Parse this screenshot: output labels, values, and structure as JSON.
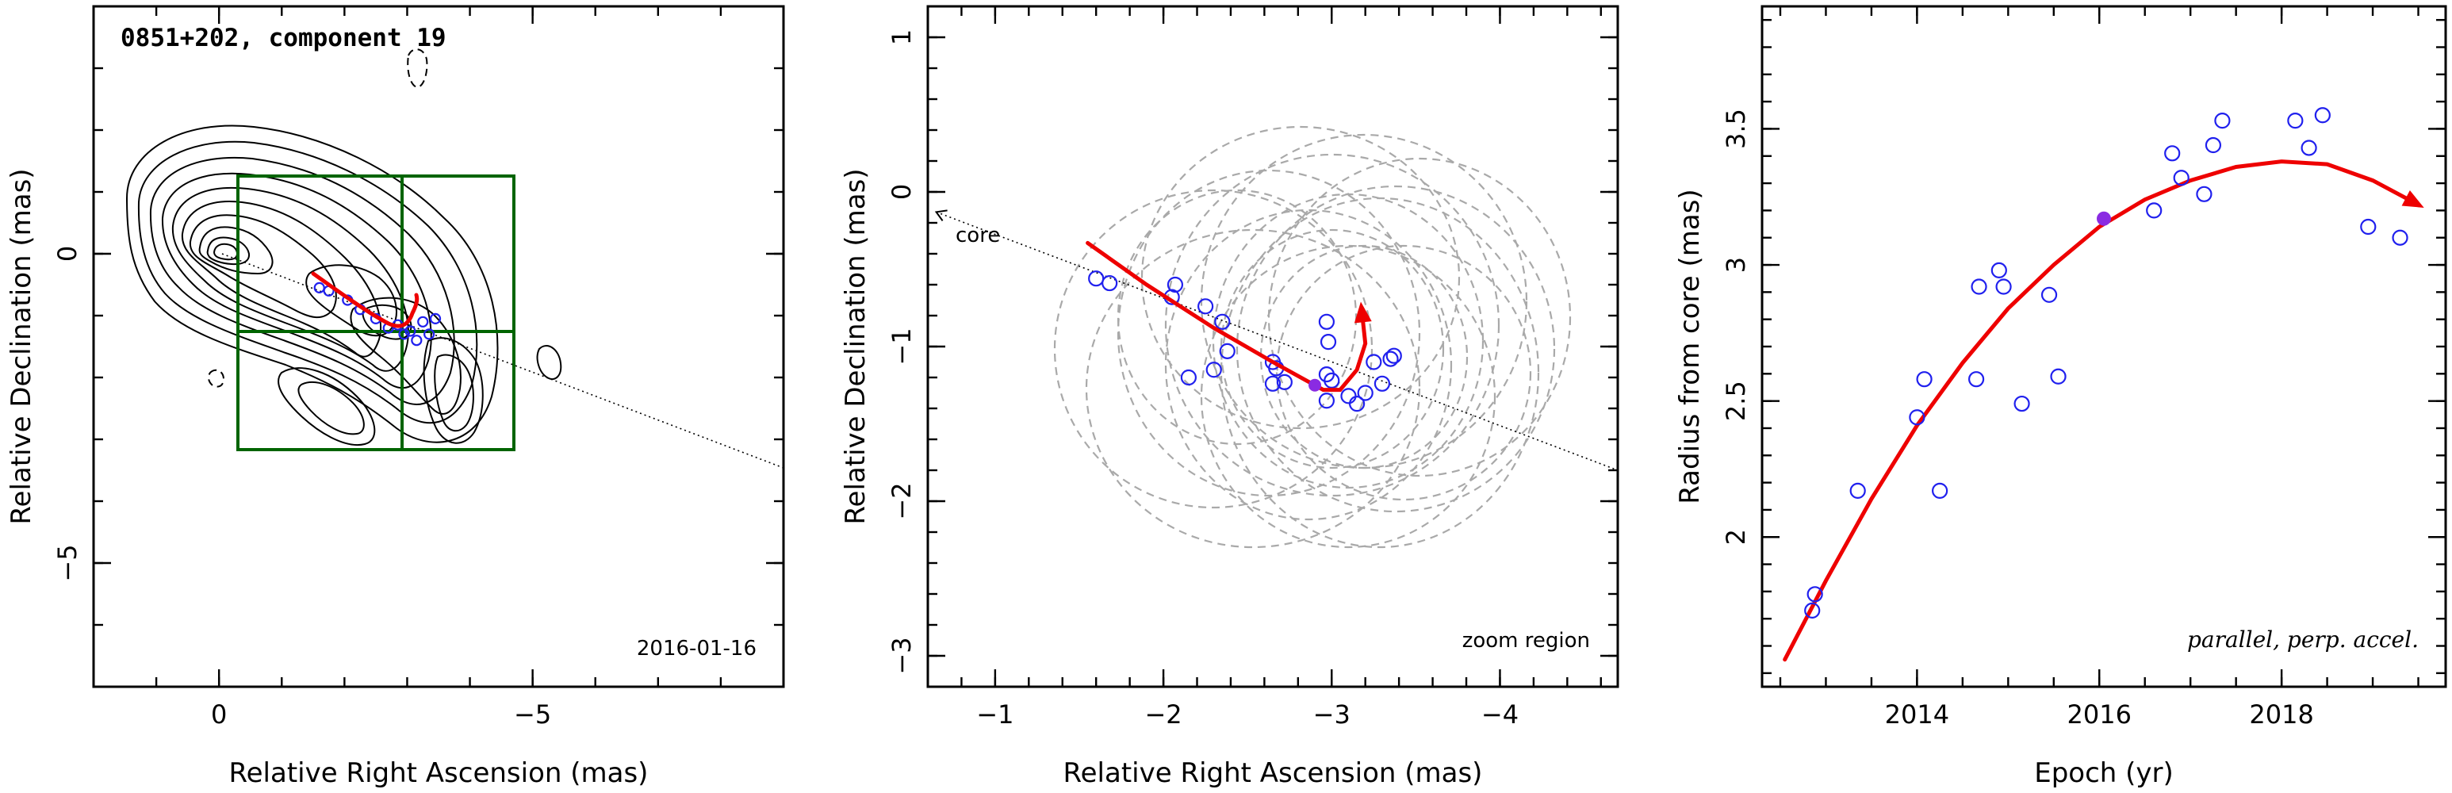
{
  "figure": {
    "title": "0851+202, component 19",
    "panel_a_date": "2016-01-16",
    "panel_b_label": "zoom region",
    "panel_b_core_label": "core",
    "panel_c_label": "parallel, perp. accel."
  },
  "colors": {
    "trajectory": "#ee0000",
    "points": "#2020ee",
    "current_point": "#8a2be2",
    "zoom_box": "#006400",
    "ellipses": "#a9a9a9"
  },
  "chart_data": [
    {
      "type": "scatter",
      "xlabel": "Relative Right Ascension (mas)",
      "ylabel": "Relative Declination (mas)",
      "xlim": [
        2,
        -9
      ],
      "ylim": [
        -7,
        4
      ],
      "x_axis_reversed": true,
      "xticks": [
        0,
        -5
      ],
      "yticks": [
        0,
        -5
      ],
      "annotations": [
        "0851+202, component 19",
        "2016-01-16"
      ],
      "series": [
        {
          "x": [
            -1.6,
            -1.75,
            -2.05,
            -2.25,
            -2.5,
            -2.7,
            -2.85,
            -2.95,
            -3.05,
            -3.15,
            -3.25,
            -3.35,
            -3.45
          ],
          "y": [
            -0.55,
            -0.6,
            -0.75,
            -0.9,
            -1.05,
            -1.2,
            -1.15,
            -1.3,
            -1.25,
            -1.4,
            -1.1,
            -1.3,
            -1.05
          ]
        }
      ]
    },
    {
      "type": "scatter",
      "xlabel": "Relative Right Ascension (mas)",
      "ylabel": "Relative Declination (mas)",
      "xlim": [
        -0.6,
        -4.7
      ],
      "ylim": [
        -3.2,
        1.2
      ],
      "x_axis_reversed": true,
      "xticks": [
        -1,
        -2,
        -3,
        -4
      ],
      "yticks": [
        1,
        0,
        -1,
        -2,
        -3
      ],
      "annotations": [
        "core",
        "zoom region"
      ],
      "series": [
        {
          "x": [
            -1.6,
            -1.68,
            -2.05,
            -2.07,
            -2.25,
            -2.35,
            -2.3,
            -2.38,
            -2.15,
            -2.65,
            -2.67,
            -2.72,
            -2.65,
            -2.97,
            -2.98,
            -2.97,
            -2.97,
            -3.0,
            -3.1,
            -3.15,
            -3.2,
            -3.25,
            -3.3,
            -3.35,
            -3.37
          ],
          "y": [
            -0.56,
            -0.59,
            -0.68,
            -0.6,
            -0.74,
            -0.84,
            -1.15,
            -1.03,
            -1.2,
            -1.1,
            -1.14,
            -1.23,
            -1.24,
            -0.84,
            -0.97,
            -1.18,
            -1.35,
            -1.22,
            -1.32,
            -1.37,
            -1.3,
            -1.1,
            -1.24,
            -1.08,
            -1.06
          ]
        }
      ],
      "highlight_point": {
        "x": -2.9,
        "y": -1.25
      },
      "trajectory": {
        "x": [
          -1.55,
          -1.9,
          -2.3,
          -2.65,
          -2.85,
          -2.95,
          -3.05,
          -3.15,
          -3.2,
          -3.18
        ],
        "y": [
          -0.33,
          -0.6,
          -0.88,
          -1.1,
          -1.22,
          -1.28,
          -1.28,
          -1.15,
          -0.98,
          -0.78
        ]
      },
      "ridge_line": {
        "x": [
          -0.65,
          -4.7
        ],
        "y": [
          -0.13,
          -1.8
        ]
      }
    },
    {
      "type": "scatter",
      "xlabel": "Epoch (yr)",
      "ylabel": "Radius from core (mas)",
      "xlim": [
        2012.3,
        2019.8
      ],
      "ylim": [
        1.45,
        3.95
      ],
      "xticks": [
        2014,
        2016,
        2018
      ],
      "yticks": [
        2,
        2.5,
        3,
        3.5
      ],
      "annotations": [
        "parallel, perp. accel."
      ],
      "series": [
        {
          "x": [
            2012.85,
            2012.88,
            2013.35,
            2014.0,
            2014.08,
            2014.25,
            2014.65,
            2014.68,
            2014.9,
            2014.95,
            2015.15,
            2015.45,
            2015.55,
            2016.6,
            2016.8,
            2016.9,
            2017.15,
            2017.25,
            2017.35,
            2018.15,
            2018.3,
            2018.45,
            2018.95,
            2019.3
          ],
          "y": [
            1.73,
            1.79,
            2.17,
            2.44,
            2.58,
            2.17,
            2.58,
            2.92,
            2.98,
            2.92,
            2.49,
            2.89,
            2.59,
            3.2,
            3.41,
            3.32,
            3.26,
            3.44,
            3.53,
            3.53,
            3.43,
            3.55,
            3.14,
            3.1
          ]
        }
      ],
      "highlight_point": {
        "x": 2016.05,
        "y": 3.17
      },
      "trajectory": {
        "x": [
          2012.55,
          2013.0,
          2013.5,
          2014.0,
          2014.5,
          2015.0,
          2015.5,
          2016.0,
          2016.5,
          2017.0,
          2017.5,
          2018.0,
          2018.5,
          2019.0,
          2019.45
        ],
        "y": [
          1.55,
          1.84,
          2.14,
          2.41,
          2.64,
          2.84,
          3.0,
          3.14,
          3.24,
          3.31,
          3.36,
          3.38,
          3.37,
          3.31,
          3.23
        ]
      }
    }
  ],
  "panels": [
    {
      "xlabel": "Relative Right Ascension (mas)",
      "ylabel": "Relative Declination (mas)",
      "xtick_labels": [
        "0",
        "−5"
      ],
      "ytick_labels": [
        "0",
        "−5"
      ]
    },
    {
      "xlabel": "Relative Right Ascension (mas)",
      "ylabel": "Relative Declination (mas)",
      "xtick_labels": [
        "−1",
        "−2",
        "−3",
        "−4"
      ],
      "ytick_labels": [
        "1",
        "0",
        "−1",
        "−2",
        "−3"
      ]
    },
    {
      "xlabel": "Epoch (yr)",
      "ylabel": "Radius from core (mas)",
      "xtick_labels": [
        "2014",
        "2016",
        "2018"
      ],
      "ytick_labels": [
        "2",
        "2.5",
        "3",
        "3.5"
      ]
    }
  ]
}
